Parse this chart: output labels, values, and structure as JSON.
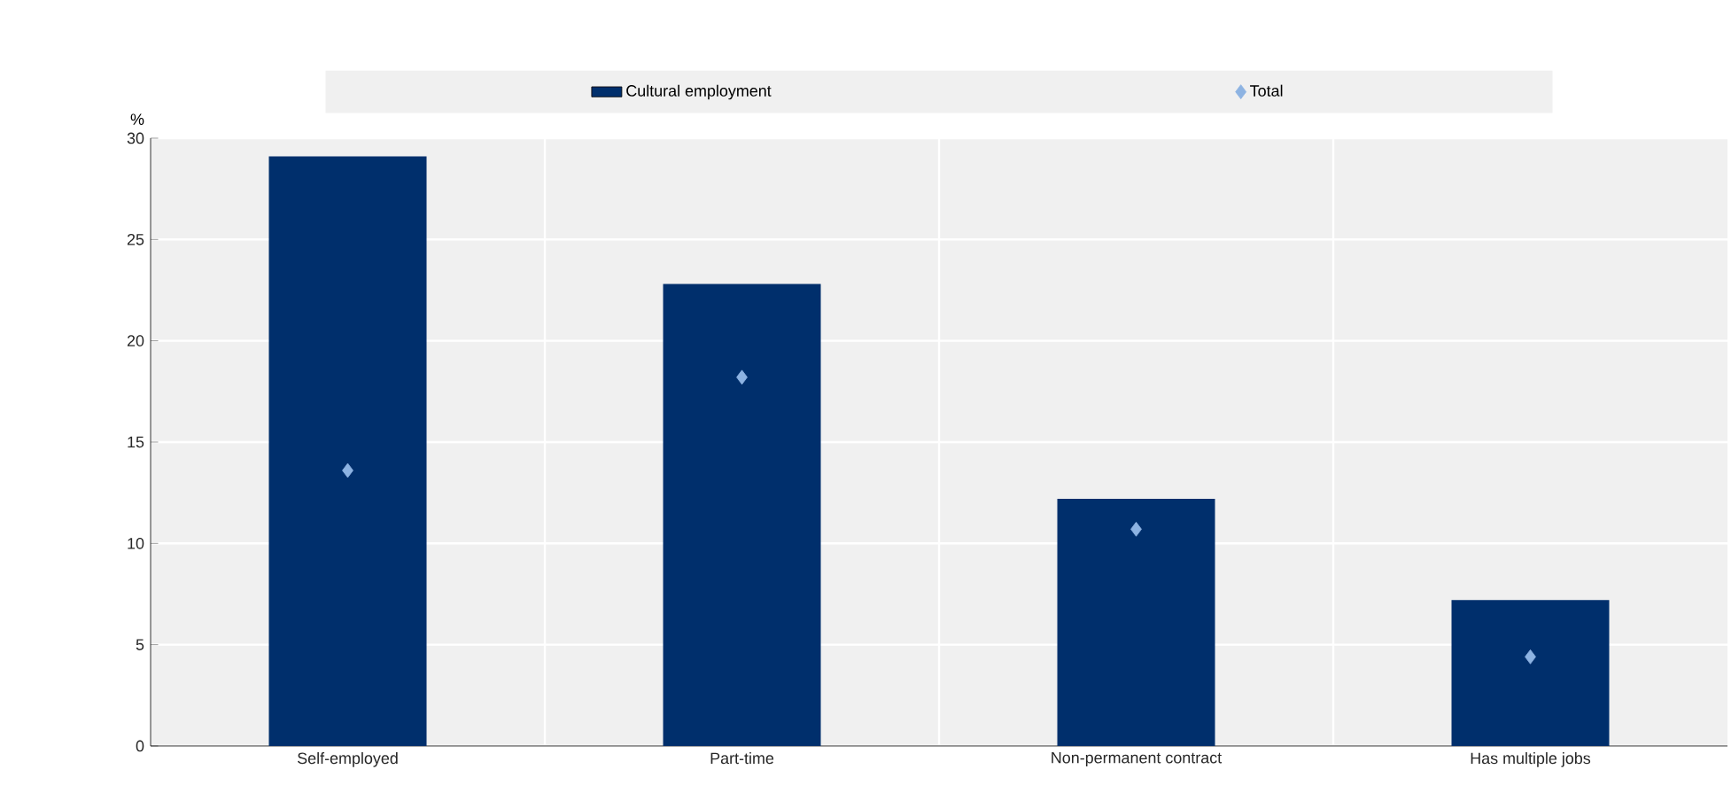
{
  "chart_data": {
    "type": "bar",
    "ylabel": "%",
    "categories": [
      "Self-employed",
      "Part-time",
      "Non-permanent contract",
      "Has multiple jobs"
    ],
    "series": [
      {
        "name": "Cultural employment",
        "color": "#002f6c",
        "values": [
          29.1,
          22.8,
          12.2,
          7.2
        ]
      },
      {
        "name": "Total",
        "type": "scatter",
        "marker": "diamond",
        "color": "#8db3e2",
        "values": [
          13.6,
          18.2,
          10.7,
          4.4
        ]
      }
    ],
    "ylim": [
      0,
      30
    ],
    "yticks": [
      0,
      5,
      10,
      15,
      20,
      25,
      30
    ],
    "grid": true,
    "legend": "top"
  }
}
